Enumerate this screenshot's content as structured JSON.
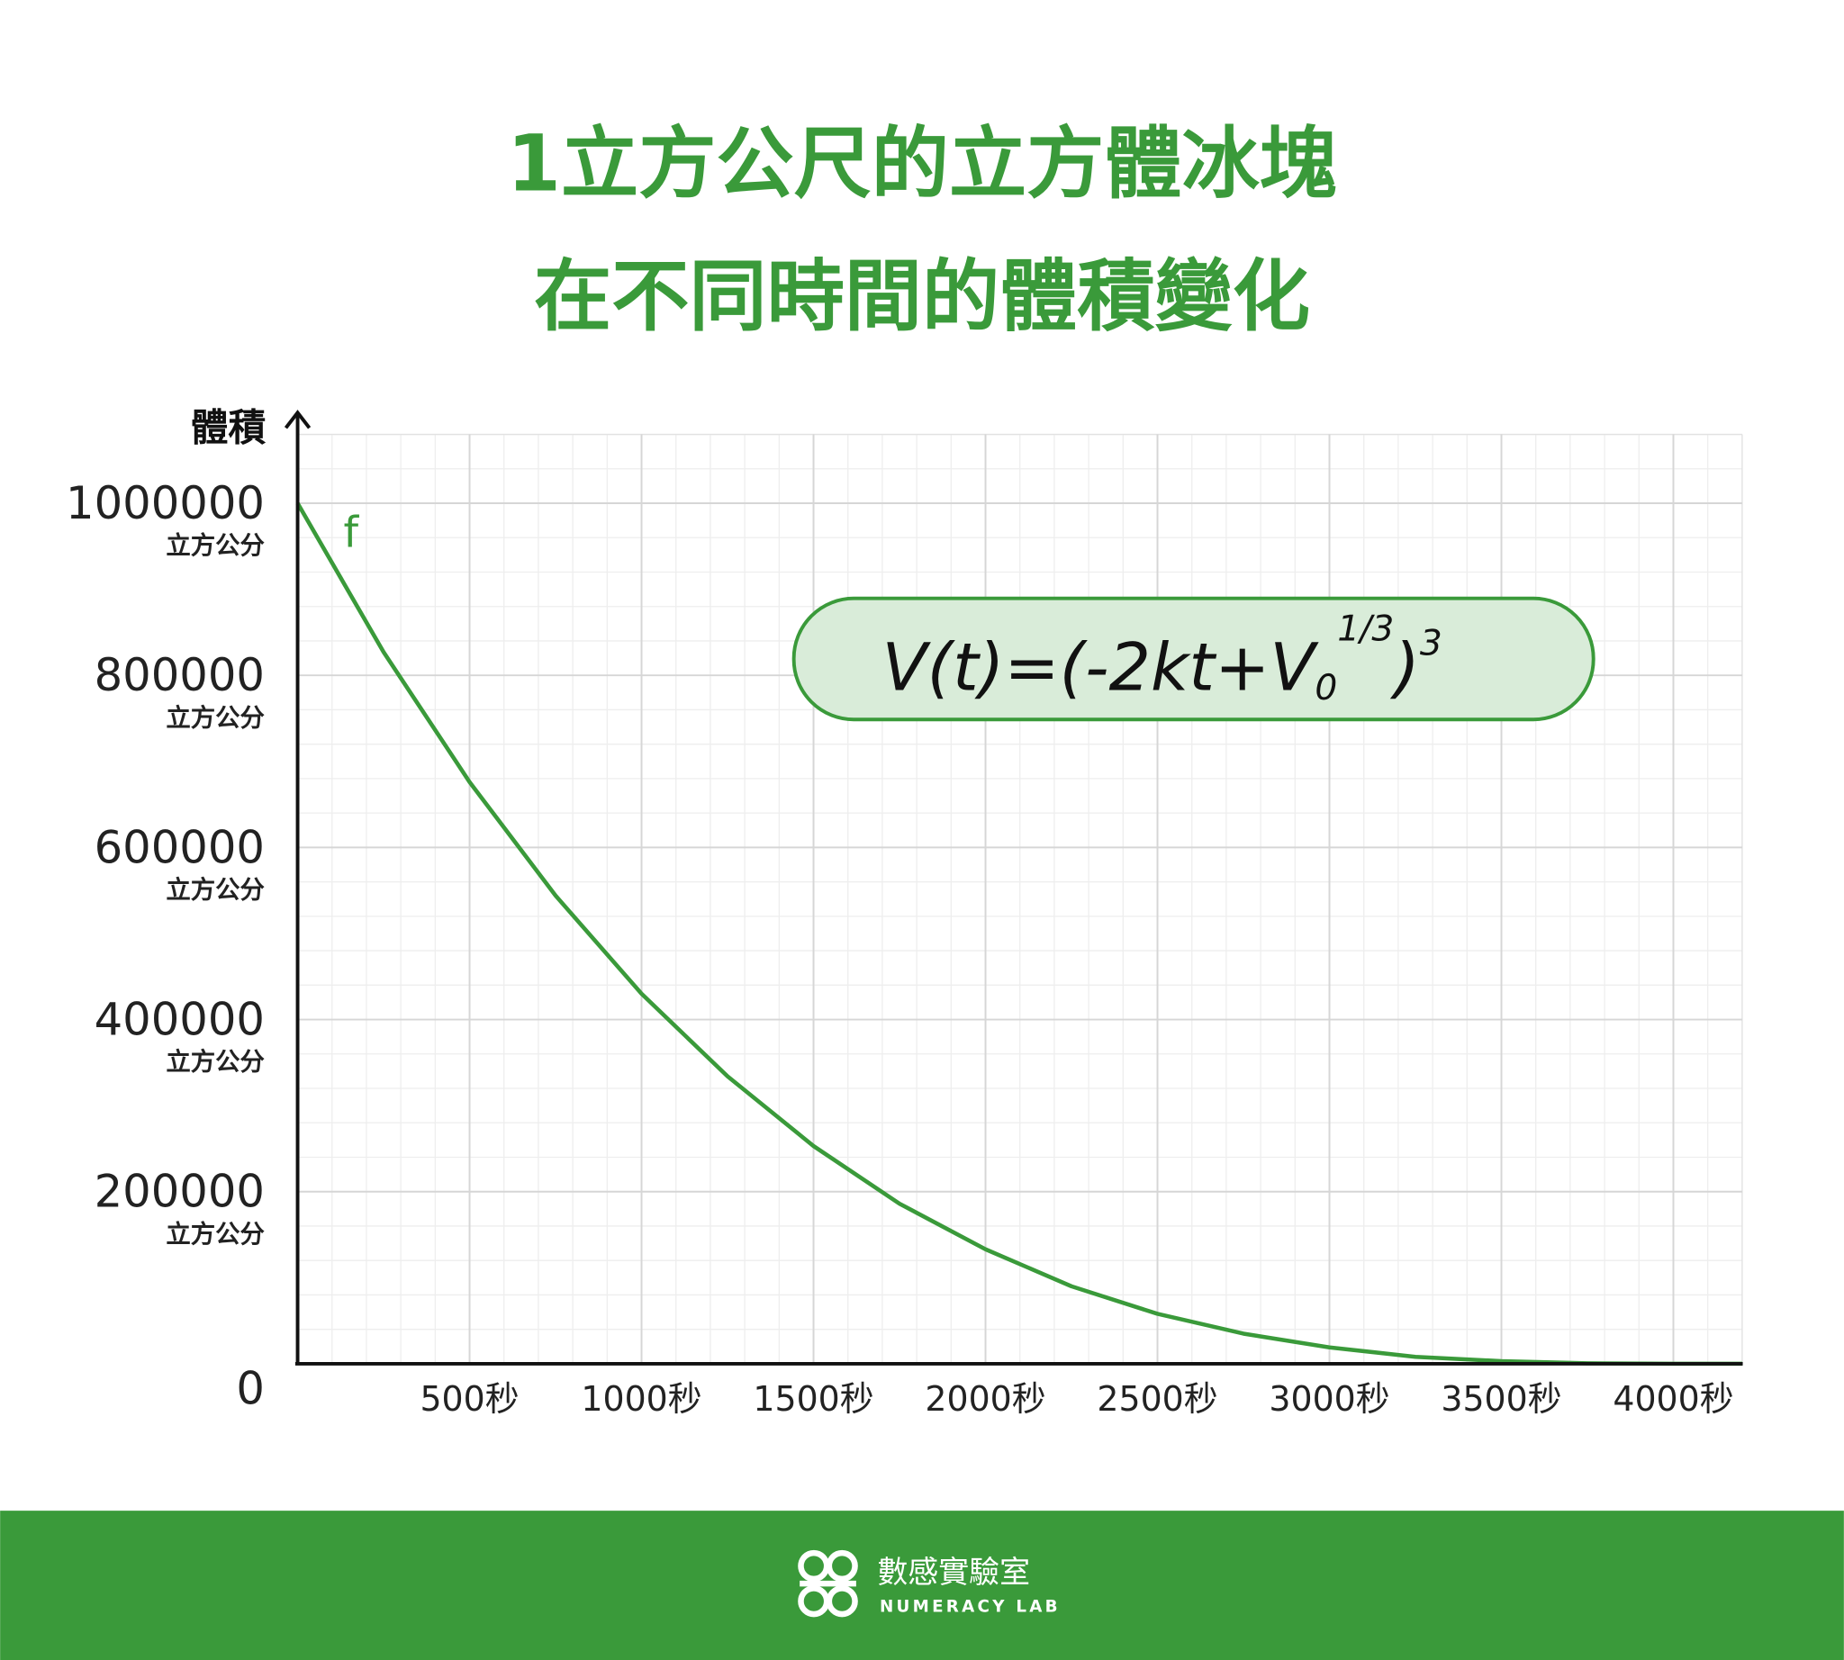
{
  "chart_data": {
    "type": "line",
    "title": "1立方公尺的立方體冰塊",
    "subtitle": "在不同時間的體積變化",
    "y_label": "體積",
    "y_unit": "立方公分",
    "x": [
      0,
      250,
      500,
      750,
      1000,
      1250,
      1500,
      1750,
      2000,
      2250,
      2500,
      2750,
      3000,
      3250,
      3500,
      3750,
      4000,
      4200
    ],
    "series": [
      {
        "name": "f",
        "color": "#3a9a3a",
        "values": [
          1000000,
          827000,
          676000,
          544000,
          430000,
          334000,
          253000,
          186000,
          133000,
          90000,
          58000,
          35000,
          19000,
          8000,
          3000,
          500,
          0,
          0
        ]
      }
    ],
    "xlim": [
      0,
      4200
    ],
    "ylim": [
      0,
      1080000
    ],
    "xticks": [
      {
        "value": 500,
        "label": "500秒"
      },
      {
        "value": 1000,
        "label": "1000秒"
      },
      {
        "value": 1500,
        "label": "1500秒"
      },
      {
        "value": 2000,
        "label": "2000秒"
      },
      {
        "value": 2500,
        "label": "2500秒"
      },
      {
        "value": 3000,
        "label": "3000秒"
      },
      {
        "value": 3500,
        "label": "3500秒"
      },
      {
        "value": 4000,
        "label": "4000秒"
      }
    ],
    "yticks": [
      0,
      200000,
      400000,
      600000,
      800000,
      1000000
    ],
    "grid": true,
    "formula": {
      "main": "V(t)=(-2kt+V",
      "sub": "0",
      "sup": "1/3",
      "close": ")",
      "power": "3"
    }
  },
  "footer": {
    "brand": "數感實驗室",
    "brand_en": "NUMERACY LAB"
  }
}
